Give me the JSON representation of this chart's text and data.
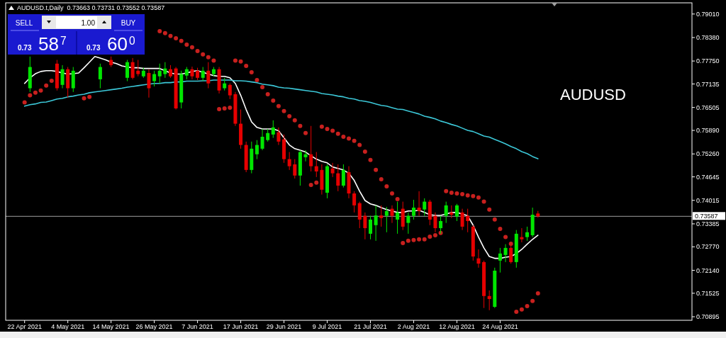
{
  "chart_data": {
    "type": "candlestick",
    "title": "AUDUSD.t,Daily  0.73663 0.73731 0.73552 0.73587",
    "categories": [
      "22 Apr 2021",
      null,
      null,
      null,
      null,
      null,
      null,
      null,
      "4 May 2021",
      null,
      null,
      null,
      null,
      null,
      null,
      null,
      "14 May 2021",
      null,
      null,
      null,
      null,
      null,
      null,
      null,
      "26 May 2021",
      null,
      null,
      null,
      null,
      null,
      null,
      null,
      "7 Jun 2021",
      null,
      null,
      null,
      null,
      null,
      null,
      null,
      "17 Jun 2021",
      null,
      null,
      null,
      null,
      null,
      null,
      null,
      "29 Jun 2021",
      null,
      null,
      null,
      null,
      null,
      null,
      null,
      "9 Jul 2021",
      null,
      null,
      null,
      null,
      null,
      null,
      null,
      "21 Jul 2021",
      null,
      null,
      null,
      null,
      null,
      null,
      null,
      "2 Aug 2021",
      null,
      null,
      null,
      null,
      null,
      null,
      null,
      "12 Aug 2021",
      null,
      null,
      null,
      null,
      null,
      null,
      null,
      "24 Aug 2021",
      null,
      null,
      null,
      null,
      null,
      null,
      null
    ],
    "ohlc": [
      null,
      [
        0.7702,
        0.7787,
        0.7692,
        0.7759
      ],
      null,
      null,
      null,
      null,
      [
        0.7768,
        0.7778,
        0.7696,
        0.7702
      ],
      [
        0.7711,
        0.7764,
        0.7702,
        0.7753
      ],
      [
        0.7753,
        0.7759,
        0.7677,
        0.7702
      ],
      [
        0.7702,
        0.7759,
        0.7692,
        0.7749
      ],
      null,
      null,
      null,
      null,
      [
        0.7726,
        0.7768,
        0.7702,
        0.7759
      ],
      null,
      [
        0.7778,
        0.7787,
        0.7759,
        0.7764
      ],
      null,
      null,
      [
        0.773,
        0.7778,
        0.7721,
        0.7772
      ],
      [
        0.7772,
        0.7783,
        0.7726,
        0.773
      ],
      [
        0.7749,
        0.7778,
        0.7734,
        0.774
      ],
      [
        0.7734,
        0.7757,
        0.773,
        0.7749
      ],
      [
        0.7743,
        0.7753,
        0.7677,
        0.7702
      ],
      [
        0.7721,
        0.7749,
        0.7707,
        0.774
      ],
      [
        0.7734,
        0.7768,
        0.7715,
        0.7749
      ],
      [
        0.774,
        0.7772,
        0.773,
        0.7755
      ],
      [
        0.7753,
        0.7764,
        0.773,
        0.7734
      ],
      [
        0.7755,
        0.7759,
        0.7645,
        0.7648
      ],
      [
        0.7664,
        0.7749,
        0.7648,
        0.774
      ],
      [
        0.7736,
        0.7759,
        0.7726,
        0.7753
      ],
      [
        0.7753,
        0.776,
        0.7726,
        0.7734
      ],
      [
        0.7749,
        0.7757,
        0.7724,
        0.773
      ],
      [
        0.773,
        0.7759,
        0.7722,
        0.7749
      ],
      [
        0.7749,
        0.7772,
        0.7702,
        0.7715
      ],
      [
        0.774,
        0.7759,
        0.7734,
        0.7753
      ],
      [
        0.7753,
        0.7759,
        0.7688,
        0.7696
      ],
      [
        0.7702,
        0.773,
        0.7696,
        0.7715
      ],
      [
        0.7711,
        0.7715,
        0.7673,
        0.7683
      ],
      [
        0.7686,
        0.7692,
        0.7601,
        0.7607
      ],
      [
        0.7607,
        0.7645,
        0.754,
        0.755
      ],
      [
        0.755,
        0.7559,
        0.7477,
        0.7483
      ],
      [
        0.7483,
        0.7559,
        0.7474,
        0.754
      ],
      [
        0.7525,
        0.7563,
        0.7512,
        0.755
      ],
      [
        0.754,
        0.7593,
        0.7536,
        0.7572
      ],
      [
        0.7563,
        0.7593,
        0.7559,
        0.7582
      ],
      [
        0.7578,
        0.7616,
        0.7569,
        0.7597
      ],
      [
        0.7584,
        0.7597,
        0.755,
        0.7559
      ],
      [
        0.7565,
        0.7578,
        0.7502,
        0.7512
      ],
      [
        0.7512,
        0.7531,
        0.7483,
        0.7493
      ],
      [
        0.7498,
        0.7512,
        0.746,
        0.7468
      ],
      [
        0.7468,
        0.7536,
        0.7441,
        0.7531
      ],
      [
        0.7517,
        0.7536,
        0.7506,
        0.7525
      ],
      [
        0.7525,
        0.7601,
        0.7479,
        0.7493
      ],
      [
        0.7493,
        0.7531,
        0.7464,
        0.7479
      ],
      [
        0.7483,
        0.7498,
        0.7417,
        0.743
      ],
      [
        0.7422,
        0.7498,
        0.7407,
        0.7493
      ],
      [
        0.7487,
        0.7502,
        0.7464,
        0.7474
      ],
      [
        0.7474,
        0.7498,
        0.7426,
        0.7441
      ],
      [
        0.7441,
        0.7498,
        0.7436,
        0.7483
      ],
      [
        0.7477,
        0.7493,
        0.7407,
        0.742
      ],
      [
        0.742,
        0.7426,
        0.7369,
        0.7388
      ],
      [
        0.7394,
        0.7398,
        0.7327,
        0.735
      ],
      [
        0.736,
        0.7369,
        0.7297,
        0.7327
      ],
      [
        0.7312,
        0.736,
        0.7297,
        0.735
      ],
      [
        0.7335,
        0.7388,
        0.7293,
        0.7361
      ],
      [
        0.7361,
        0.7388,
        0.7331,
        0.7354
      ],
      [
        0.736,
        0.7384,
        0.7316,
        0.7373
      ],
      [
        0.7379,
        0.7388,
        0.7341,
        0.736
      ],
      [
        0.735,
        0.7398,
        0.7312,
        0.7369
      ],
      [
        0.7379,
        0.7398,
        0.7322,
        0.7331
      ],
      [
        0.7341,
        0.7369,
        0.7312,
        0.736
      ],
      [
        0.736,
        0.7403,
        0.735,
        0.7382
      ],
      [
        0.7382,
        0.7426,
        0.736,
        0.7373
      ],
      [
        0.7377,
        0.7407,
        0.736,
        0.7398
      ],
      [
        0.7398,
        0.7403,
        0.7335,
        0.735
      ],
      [
        0.736,
        0.7369,
        0.7316,
        0.7327
      ],
      [
        0.7327,
        0.736,
        0.7312,
        0.7346
      ],
      [
        0.736,
        0.7398,
        0.7341,
        0.7388
      ],
      [
        0.7369,
        0.7388,
        0.7354,
        0.7363
      ],
      [
        0.7358,
        0.7392,
        0.7346,
        0.7388
      ],
      [
        0.7369,
        0.7379,
        0.7322,
        0.7331
      ],
      [
        0.736,
        0.7379,
        0.7316,
        0.7346
      ],
      [
        0.7331,
        0.7335,
        0.724,
        0.7251
      ],
      [
        0.7246,
        0.727,
        0.7221,
        0.7232
      ],
      [
        0.7236,
        0.724,
        0.7113,
        0.7145
      ],
      [
        0.7145,
        0.716,
        0.7107,
        0.7137
      ],
      [
        0.7116,
        0.7221,
        0.7113,
        0.7213
      ],
      [
        0.724,
        0.7274,
        0.7208,
        0.7259
      ],
      [
        0.7255,
        0.7284,
        0.7236,
        0.7274
      ],
      [
        0.7274,
        0.7284,
        0.7232,
        0.7236
      ],
      [
        0.7236,
        0.7322,
        0.7221,
        0.7312
      ],
      [
        0.7303,
        0.7327,
        0.7289,
        0.7297
      ],
      [
        0.7303,
        0.7331,
        0.7293,
        0.7316
      ],
      [
        0.7308,
        0.7382,
        0.7303,
        0.7363
      ],
      [
        0.73663,
        0.73731,
        0.73552,
        0.73587
      ]
    ],
    "colors": [
      null,
      "#00e600",
      null,
      null,
      null,
      null,
      "#e60000",
      "#00e600",
      "#e60000",
      "#00e600",
      null,
      null,
      null,
      null,
      "#00e600",
      null,
      "#e60000",
      null,
      null,
      "#00e600",
      "#e60000",
      "#e60000",
      "#00e600",
      "#e60000",
      "#00e600",
      "#00e600",
      "#00e600",
      "#e60000",
      "#e60000",
      "#00e600",
      "#00e600",
      "#e60000",
      "#e60000",
      "#00e600",
      "#e60000",
      "#00e600",
      "#e60000",
      "#00e600",
      "#e60000",
      "#e60000",
      "#e60000",
      "#e60000",
      "#00e600",
      "#00e600",
      "#00e600",
      "#00e600",
      "#00e600",
      "#e60000",
      "#e60000",
      "#e60000",
      "#e60000",
      "#00e600",
      "#00e600",
      "#e60000",
      "#e60000",
      "#e60000",
      "#00e600",
      "#e60000",
      "#e60000",
      "#00e600",
      "#e60000",
      "#e60000",
      "#e60000",
      "#e60000",
      "#00e600",
      "#00e600",
      "#e60000",
      "#00e600",
      "#e60000",
      "#00e600",
      "#e60000",
      "#00e600",
      "#00e600",
      "#e60000",
      "#00e600",
      "#e60000",
      "#e60000",
      "#00e600",
      "#00e600",
      "#e60000",
      "#00e600",
      "#e60000",
      "#e60000",
      "#e60000",
      "#e60000",
      "#e60000",
      "#e60000",
      "#00e600",
      "#00e600",
      "#00e600",
      "#e60000",
      "#00e600",
      "#e60000",
      "#00e600",
      "#00e600",
      "#e60000"
    ],
    "series": [
      {
        "type": "line",
        "color": "#ffffff",
        "values": [
          0.7715,
          0.773,
          0.7741,
          0.7747,
          0.7749,
          0.7749,
          0.7747,
          0.7743,
          0.774,
          0.7741,
          0.7743,
          0.7757,
          0.7772,
          0.7787,
          0.7783,
          0.7778,
          0.7772,
          0.7768,
          0.7762,
          0.7759,
          0.7757,
          0.7757,
          0.7755,
          0.7755,
          0.7755,
          0.7755,
          0.7749,
          0.7743,
          0.774,
          0.774,
          0.7743,
          0.7747,
          0.7749,
          0.7745,
          0.774,
          0.7736,
          0.7734,
          0.7734,
          0.773,
          0.7715,
          0.7683,
          0.7645,
          0.7612,
          0.7597,
          0.7593,
          0.7593,
          0.7593,
          0.7588,
          0.7569,
          0.755,
          0.754,
          0.7536,
          0.7531,
          0.7521,
          0.7512,
          0.7506,
          0.7502,
          0.7491,
          0.7487,
          0.7483,
          0.7474,
          0.7455,
          0.7426,
          0.7401,
          0.7392,
          0.7388,
          0.7382,
          0.7377,
          0.7373,
          0.7369,
          0.7369,
          0.7373,
          0.7373,
          0.7375,
          0.7369,
          0.7363,
          0.7361,
          0.7361,
          0.7365,
          0.7369,
          0.7369,
          0.7365,
          0.736,
          0.7335,
          0.7303,
          0.7274,
          0.7251,
          0.7246,
          0.7246,
          0.7249,
          0.7251,
          0.7259,
          0.727,
          0.7284,
          0.7297,
          0.7308
        ]
      },
      {
        "type": "line",
        "color": "#3cc8d8",
        "values": [
          0.7654,
          0.7658,
          0.766,
          0.7664,
          0.7665,
          0.7669,
          0.7673,
          0.7675,
          0.7679,
          0.7681,
          0.7684,
          0.7686,
          0.769,
          0.7692,
          0.7694,
          0.7696,
          0.7698,
          0.77,
          0.7702,
          0.7705,
          0.7707,
          0.7709,
          0.7711,
          0.7713,
          0.7715,
          0.7715,
          0.7717,
          0.7717,
          0.7719,
          0.7719,
          0.7721,
          0.7721,
          0.7721,
          0.7722,
          0.7722,
          0.7724,
          0.7724,
          0.7724,
          0.7724,
          0.7722,
          0.7722,
          0.7721,
          0.7719,
          0.7717,
          0.7713,
          0.7711,
          0.7709,
          0.7705,
          0.7703,
          0.7702,
          0.77,
          0.7698,
          0.7696,
          0.7694,
          0.7692,
          0.7688,
          0.7686,
          0.7684,
          0.7681,
          0.7679,
          0.7675,
          0.7673,
          0.7669,
          0.7667,
          0.7664,
          0.766,
          0.7656,
          0.7654,
          0.765,
          0.7646,
          0.7645,
          0.7641,
          0.7637,
          0.7633,
          0.7627,
          0.7624,
          0.762,
          0.7614,
          0.761,
          0.7605,
          0.7601,
          0.7595,
          0.7589,
          0.7586,
          0.758,
          0.7574,
          0.7571,
          0.7565,
          0.7559,
          0.7553,
          0.7546,
          0.754,
          0.7532,
          0.7527,
          0.7519,
          0.7513
        ]
      },
      {
        "type": "scatter",
        "color": "#c8201e",
        "marker": "circle",
        "values": [
          0.7664,
          0.7683,
          0.769,
          0.7696,
          0.7709,
          0.7722,
          null,
          null,
          null,
          null,
          null,
          0.7675,
          0.7679,
          null,
          null,
          null,
          null,
          null,
          null,
          null,
          null,
          null,
          null,
          null,
          null,
          0.7855,
          0.785,
          0.7842,
          0.7836,
          0.7829,
          0.7819,
          0.7812,
          0.7802,
          0.7793,
          0.7785,
          0.7776,
          0.7646,
          0.7648,
          0.765,
          0.7776,
          0.7774,
          0.7762,
          0.7745,
          0.7724,
          0.7705,
          0.7686,
          0.7669,
          0.7654,
          0.7641,
          0.7627,
          0.7616,
          0.7601,
          0.7582,
          0.7443,
          0.7449,
          0.7599,
          0.7593,
          0.7588,
          0.758,
          0.7572,
          0.7567,
          0.7561,
          0.755,
          0.7532,
          0.751,
          0.7483,
          0.7458,
          0.7439,
          0.742,
          0.7405,
          0.7287,
          0.7293,
          0.7295,
          0.7297,
          0.7297,
          0.7304,
          0.7308,
          0.7314,
          0.7426,
          0.7422,
          0.742,
          0.7418,
          0.7415,
          0.7413,
          0.7409,
          0.7398,
          0.7377,
          0.735,
          0.7325,
          0.7303,
          0.7285,
          0.7103,
          0.7109,
          0.7118,
          0.7132,
          0.7152
        ]
      }
    ],
    "ylim": [
      0.708,
      0.7931
    ],
    "yticks": [
      {
        "value": 0.7901,
        "label": "0.79010"
      },
      {
        "value": 0.7838,
        "label": "0.78380"
      },
      {
        "value": 0.7775,
        "label": "0.77750"
      },
      {
        "value": 0.77135,
        "label": "0.77135"
      },
      {
        "value": 0.76505,
        "label": "0.76505"
      },
      {
        "value": 0.7589,
        "label": "0.75890"
      },
      {
        "value": 0.7526,
        "label": "0.75260"
      },
      {
        "value": 0.74645,
        "label": "0.74645"
      },
      {
        "value": 0.74015,
        "label": "0.74015"
      },
      {
        "value": 0.73385,
        "label": "0.73385"
      },
      {
        "value": 0.7277,
        "label": "0.72770"
      },
      {
        "value": 0.7214,
        "label": "0.72140"
      },
      {
        "value": 0.71525,
        "label": "0.71525"
      },
      {
        "value": 0.70895,
        "label": "0.70895"
      }
    ],
    "ref_lines": [
      {
        "axis": "y",
        "value": 0.73587,
        "label": "0.73587",
        "color": "#a0a0a0"
      }
    ],
    "annotations": [
      "AUDUSD",
      "SELL",
      "1.00",
      "BUY",
      "0.73",
      "58$^{7}$",
      "0.73",
      "60$^{0}$"
    ]
  }
}
